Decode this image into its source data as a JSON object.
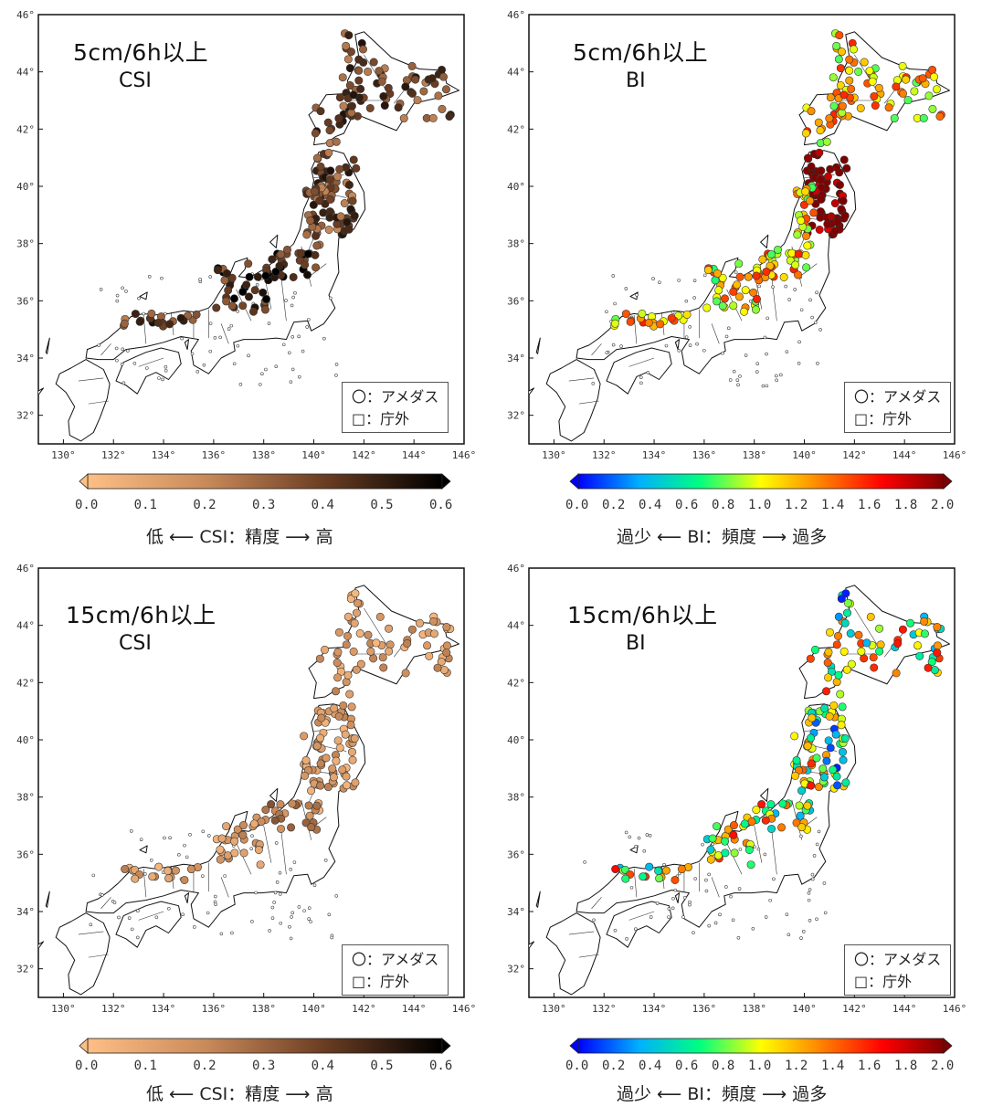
{
  "panels": [
    {
      "id": "p1",
      "title": "5cm/6h以上",
      "metric": "CSI",
      "palette": "csi",
      "level": "5cm",
      "legend": [
        "〇：アメダス",
        "□：庁外"
      ]
    },
    {
      "id": "p2",
      "title": "5cm/6h以上",
      "metric": "BI",
      "palette": "bi",
      "level": "5cm",
      "legend": [
        "〇：アメダス",
        "□：庁外"
      ]
    },
    {
      "id": "p3",
      "title": "15cm/6h以上",
      "metric": "CSI",
      "palette": "csi",
      "level": "15cm",
      "legend": [
        "〇：アメダス",
        "□：庁外"
      ]
    },
    {
      "id": "p4",
      "title": "15cm/6h以上",
      "metric": "BI",
      "palette": "bi",
      "level": "15cm",
      "legend": [
        "〇：アメダス",
        "□：庁外"
      ]
    }
  ],
  "axes": {
    "lon_ticks": [
      "130°",
      "132°",
      "134°",
      "136°",
      "138°",
      "140°",
      "142°",
      "144°",
      "146°"
    ],
    "lat_ticks": [
      "46°",
      "44°",
      "42°",
      "40°",
      "38°",
      "36°",
      "34°",
      "32°"
    ],
    "lon_range": [
      129,
      146
    ],
    "lat_range": [
      31,
      46
    ]
  },
  "colorbars": {
    "csi": {
      "ticks": [
        "0.0",
        "0.1",
        "0.2",
        "0.3",
        "0.4",
        "0.5",
        "0.6"
      ],
      "range": [
        0,
        0.6
      ],
      "caption": "低 ⟵ CSI：精度 ⟶ 高",
      "colors": [
        "#fdbf85",
        "#c98a5a",
        "#6b3d22",
        "#000000"
      ]
    },
    "bi": {
      "ticks": [
        "0.0",
        "0.2",
        "0.4",
        "0.6",
        "0.8",
        "1.0",
        "1.2",
        "1.4",
        "1.6",
        "1.8",
        "2.0"
      ],
      "range": [
        0,
        2
      ],
      "caption": "過少 ⟵ BI：頻度 ⟶ 過多",
      "colors": [
        "#0000ff",
        "#00b0ff",
        "#00ff80",
        "#ffff00",
        "#ff8000",
        "#ff0000",
        "#800000"
      ]
    }
  },
  "colors": {
    "land_outline": "#111111",
    "frame": "#111111"
  }
}
